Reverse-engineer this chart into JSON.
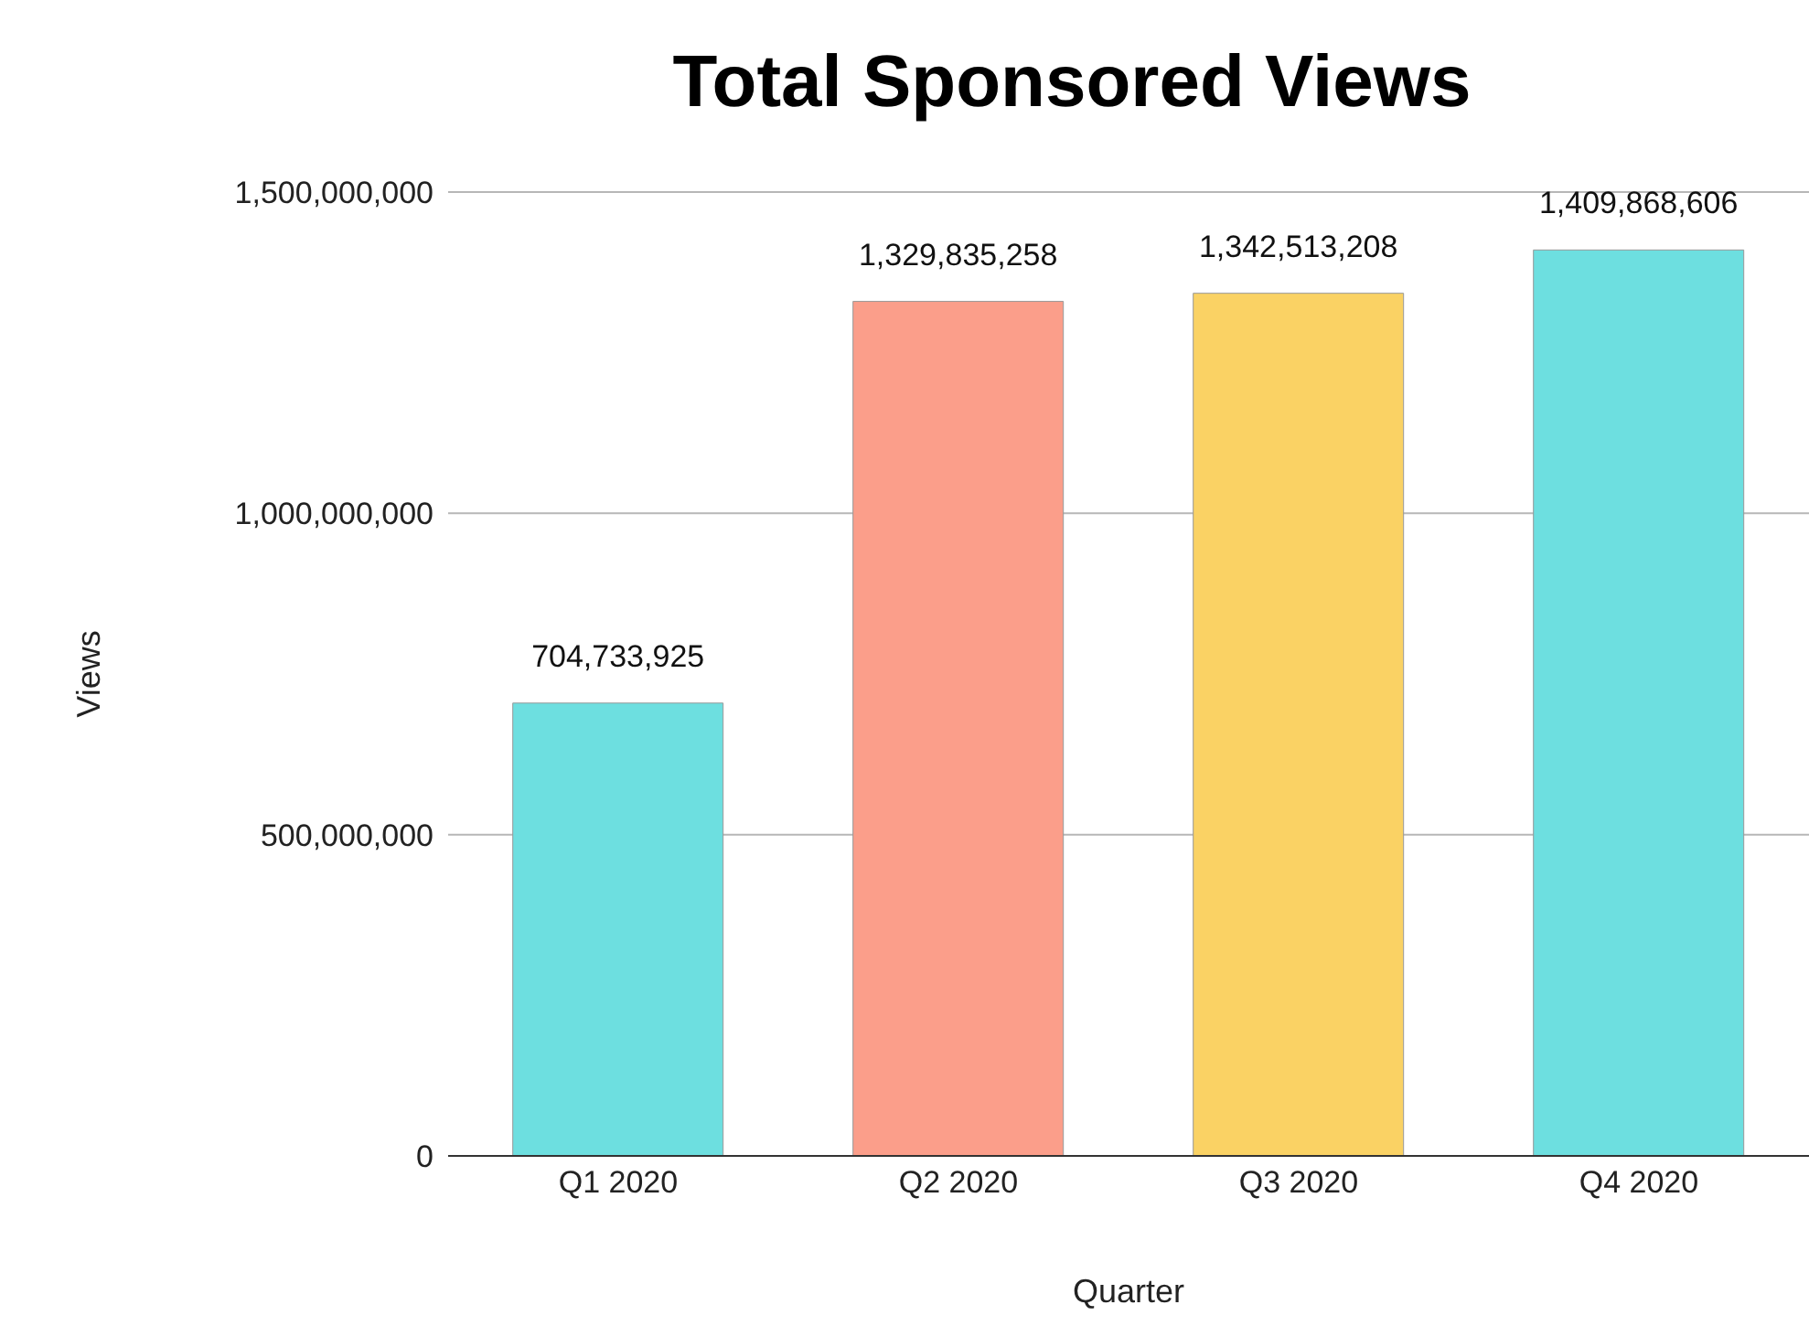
{
  "chart_data": {
    "type": "bar",
    "title": "Total Sponsored Views",
    "xlabel": "Quarter",
    "ylabel": "Views",
    "categories": [
      "Q1 2020",
      "Q2 2020",
      "Q3 2020",
      "Q4 2020"
    ],
    "values": [
      704733925,
      1329835258,
      1342513208,
      1409868606
    ],
    "value_labels": [
      "704,733,925",
      "1,329,835,258",
      "1,342,513,208",
      "1,409,868,606"
    ],
    "colors": [
      "#6ddfe0",
      "#fb9e8a",
      "#fad264",
      "#6ddfe0"
    ],
    "ylim": [
      0,
      1500000000
    ],
    "yticks": [
      0,
      {
        "value": 500000000,
        "label": "500,000,000"
      },
      {
        "value": 1000000000,
        "label": "1,000,000,000"
      },
      {
        "value": 1500000000,
        "label": "1,500,000,000"
      }
    ],
    "grid": "y"
  }
}
